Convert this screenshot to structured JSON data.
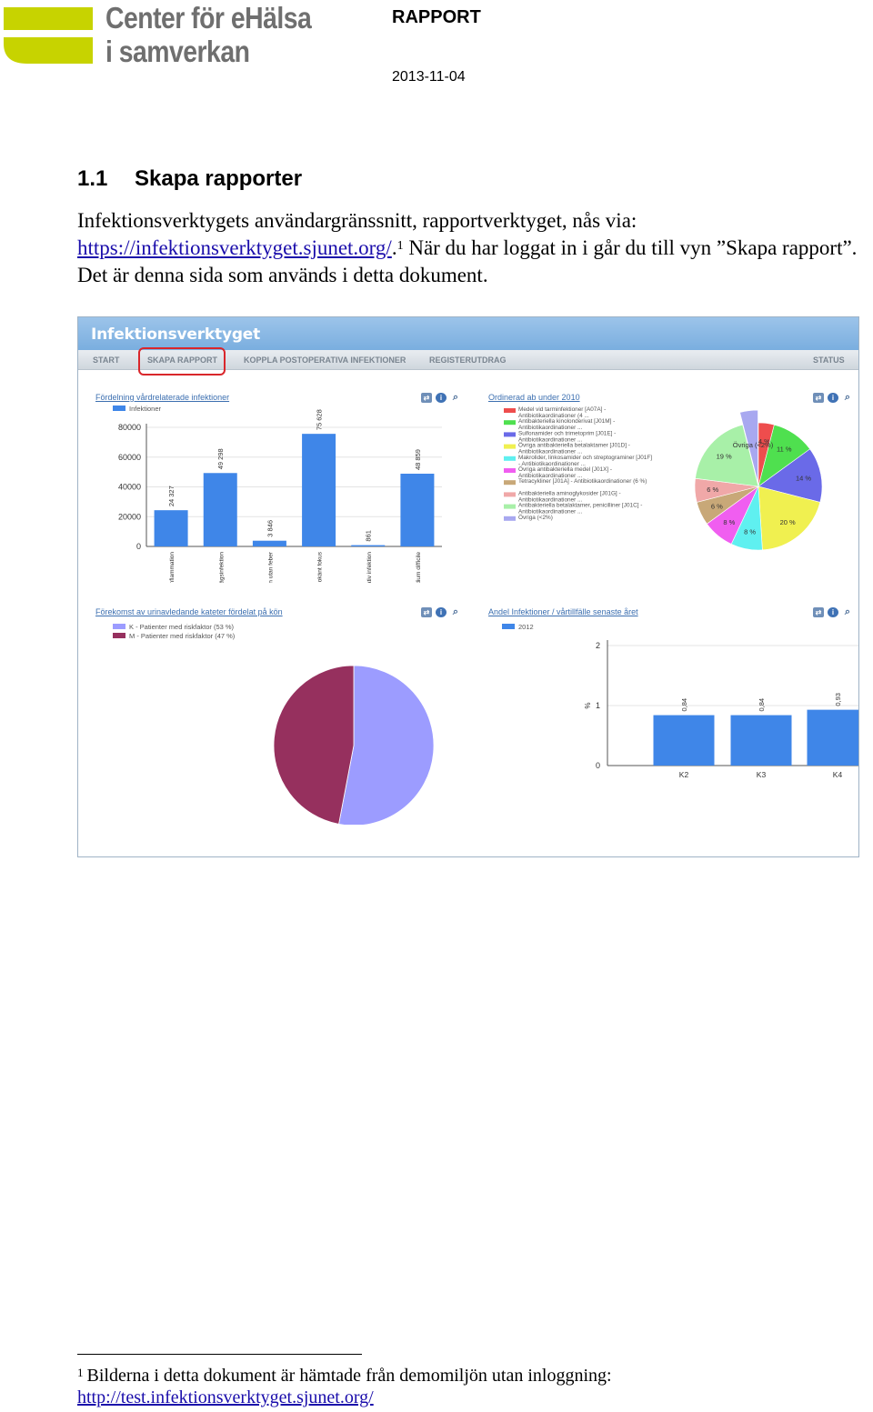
{
  "header": {
    "logo_line1": "Center för eHälsa",
    "logo_line2": "i samverkan",
    "logo_colors": [
      "#c7d300",
      "#6f6f6f"
    ],
    "report_label": "RAPPORT",
    "date": "2013-11-04"
  },
  "section": {
    "number": "1.1",
    "title": "Skapa rapporter"
  },
  "body": {
    "line1": "Infektionsverktygets användargränssnitt, rapportverktyget, nås via:",
    "link": "https://infektionsverktyget.sjunet.org/",
    "after_link": ".",
    "footnote_ref": "1",
    "rest": " När du har loggat in i går du till vyn ”Skapa rapport”. Det är denna sida som används i detta dokument."
  },
  "app": {
    "title": "Infektionsverktyget",
    "nav": [
      "START",
      "SKAPA RAPPORT",
      "KOPPLA POSTOPERATIVA INFEKTIONER",
      "REGISTERUTDRAG",
      "STATUS"
    ],
    "active_nav": "SKAPA RAPPORT",
    "highlight_color": "#d9262b",
    "panel_icons": [
      "export-icon",
      "info-icon",
      "zoom-icon"
    ]
  },
  "chart_data": [
    {
      "type": "bar",
      "title": "Fördelning vårdrelaterade infektioner",
      "categories": [
        "lunginflammation",
        "urinvägsinfektion",
        "urinvägsinfektion utan feber",
        "vårdrelaterad sepsis med okänt fokus",
        "ytlig postoperativ infektion",
        "infektion med Clostridium difficile"
      ],
      "series": [
        {
          "name": "Infektioner",
          "values": [
            24327,
            49298,
            3846,
            75628,
            861,
            48859
          ],
          "color": "#3f86e8"
        }
      ],
      "data_labels": [
        "24 327",
        "49 298",
        "3 846",
        "75 628",
        "861",
        "48 859"
      ],
      "ytick_labels": [
        "0",
        "20000",
        "40000",
        "60000",
        "80000"
      ],
      "ylim": [
        0,
        80000
      ],
      "grid": true,
      "legend": "top-left"
    },
    {
      "type": "pie",
      "title": "Ordinerad ab under 2010",
      "legend_entries": [
        {
          "line1": "Medel vid tarminfektioner [A07A] -",
          "line2": "Antibiotikaordinationer  (4 ...",
          "color": "#ee4d4d"
        },
        {
          "line1": "Antibakteriella kinolonderivat [J01M] -",
          "line2": "Antibiotikaordinationer ...",
          "color": "#4fe04f"
        },
        {
          "line1": "Sulfonamider och trimetoprim [J01E] -",
          "line2": "Antibiotikaordinationer ...",
          "color": "#6a6ae8"
        },
        {
          "line1": "Övriga antibakteriella betalaktamer [J01D] -",
          "line2": "Antibiotikaordinationer ...",
          "color": "#f0f050"
        },
        {
          "line1": "Makrolider, linkosamider och streptograminer [J01F]",
          "line2": "- Antibiotikaordinationer ...",
          "color": "#5ff0f0"
        },
        {
          "line1": "Övriga antibakteriella medel [J01X] -",
          "line2": "Antibiotikaordinationer ...",
          "color": "#f05ef0"
        },
        {
          "line1": "Tetracykliner [J01A] - Antibiotikaordinationer (6 %)",
          "line2": "",
          "color": "#c8a878"
        },
        {
          "line1": "Antibakteriella aminoglykosider [J01G] -",
          "line2": "Antibiotikaordinationer ...",
          "color": "#f0a8a8"
        },
        {
          "line1": "Antibakteriella betalaktamer, penicilliner [J01C] -",
          "line2": "Antibiotikaordinationer ...",
          "color": "#a8f0a8"
        },
        {
          "line1": "Övriga (<2%)",
          "line2": "",
          "color": "#a8a8f0"
        }
      ],
      "slices": [
        {
          "label": "4 %",
          "value": 4,
          "color": "#ee4d4d"
        },
        {
          "label": "11 %",
          "value": 11,
          "color": "#4fe04f"
        },
        {
          "label": "14 %",
          "value": 14,
          "color": "#6a6ae8"
        },
        {
          "label": "20 %",
          "value": 20,
          "color": "#f0f050"
        },
        {
          "label": "8 %",
          "value": 8,
          "color": "#5ff0f0"
        },
        {
          "label": "8 %",
          "value": 8,
          "color": "#f05ef0"
        },
        {
          "label": "6 %",
          "value": 6,
          "color": "#c8a878"
        },
        {
          "label": "6 %",
          "value": 6,
          "color": "#f0a8a8"
        },
        {
          "label": "19 %",
          "value": 19,
          "color": "#a8f0a8"
        },
        {
          "label": "Övriga (<2%)",
          "value": 4,
          "color": "#a8a8f0"
        }
      ]
    },
    {
      "type": "pie",
      "title": "Förekomst av urinavledande kateter fördelat på kön",
      "slices": [
        {
          "label": "K - Patienter med riskfaktor (53 %)",
          "value": 53,
          "color": "#9c9cff"
        },
        {
          "label": "M - Patienter med riskfaktor (47 %)",
          "value": 47,
          "color": "#96305e"
        }
      ],
      "legend": "top-left"
    },
    {
      "type": "bar",
      "title": "Andel Infektioner / vårtillfälle senaste året",
      "categories": [
        "K2",
        "K3",
        "K4"
      ],
      "series": [
        {
          "name": "2012",
          "values": [
            0.84,
            0.84,
            0.93
          ],
          "color": "#3f86e8"
        }
      ],
      "data_labels": [
        "0,84",
        "0,84",
        "0,93"
      ],
      "ylabel": "%",
      "ytick_labels": [
        "0",
        "1",
        "2"
      ],
      "ylim": [
        0,
        2
      ],
      "grid": true,
      "legend": "top-left"
    }
  ],
  "footnote": {
    "number": "1",
    "text": "Bilderna i detta dokument är hämtade från demomiljön utan inloggning:",
    "link": "http://test.infektionsverktyget.sjunet.org/"
  }
}
